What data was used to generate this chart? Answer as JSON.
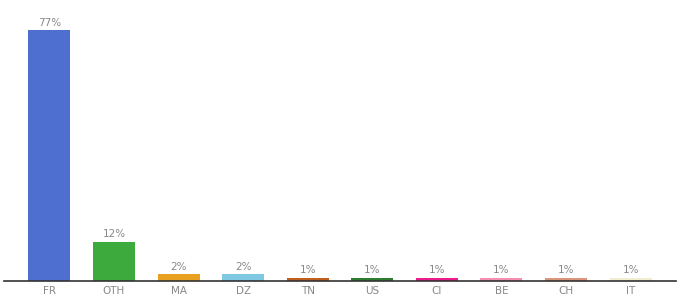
{
  "categories": [
    "FR",
    "OTH",
    "MA",
    "DZ",
    "TN",
    "US",
    "CI",
    "BE",
    "CH",
    "IT"
  ],
  "values": [
    77,
    12,
    2,
    2,
    1,
    1,
    1,
    1,
    1,
    1
  ],
  "bar_colors": [
    "#4F6FD0",
    "#3DAA3D",
    "#E8A020",
    "#7EC8E3",
    "#C06020",
    "#2E7D32",
    "#E91E8C",
    "#F48FB1",
    "#D9967A",
    "#F0EDD0"
  ],
  "ylim": [
    0,
    85
  ],
  "label_fontsize": 7.5,
  "tick_fontsize": 7.5,
  "bg_color": "#ffffff",
  "label_color": "#888888",
  "tick_color": "#888888",
  "spine_color": "#333333"
}
